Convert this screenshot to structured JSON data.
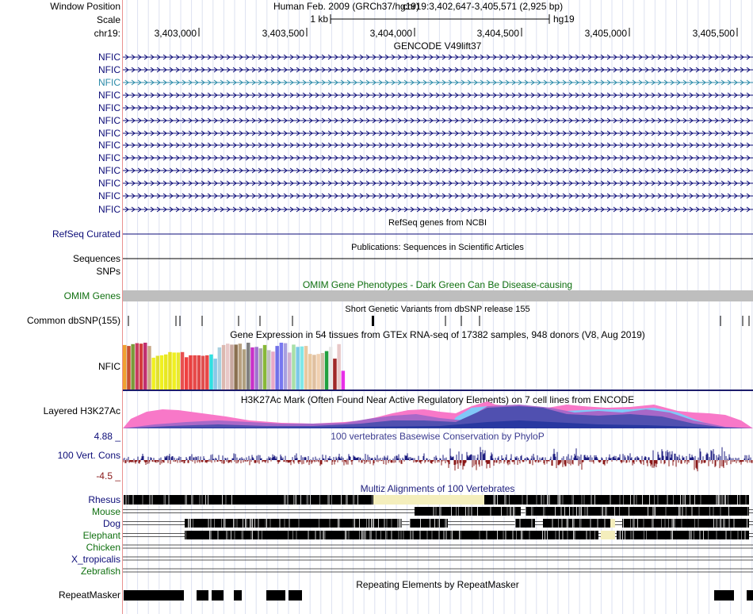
{
  "header": {
    "window_label": "Window Position",
    "scale_label": "Scale",
    "chrom_label": "chr19:",
    "assembly": "Human Feb. 2009 (GRCh37/hg19)",
    "position": "chr19:3,402,647-3,405,571 (2,925 bp)",
    "scale_text": "1 kb",
    "db": "hg19",
    "ticks": [
      "3,403,000",
      "3,403,500",
      "3,404,000",
      "3,404,500",
      "3,405,000",
      "3,405,500"
    ]
  },
  "gencode": {
    "title": "GENCODE V49lift37",
    "rows": [
      {
        "label": "NFIC",
        "color": "#0c0c78"
      },
      {
        "label": "NFIC",
        "color": "#0c0c78"
      },
      {
        "label": "NFIC",
        "color": "#2a8aa8"
      },
      {
        "label": "NFIC",
        "color": "#0c0c78"
      },
      {
        "label": "NFIC",
        "color": "#0c0c78"
      },
      {
        "label": "NFIC",
        "color": "#0c0c78"
      },
      {
        "label": "NFIC",
        "color": "#0c0c78"
      },
      {
        "label": "NFIC",
        "color": "#0c0c78"
      },
      {
        "label": "NFIC",
        "color": "#0c0c78"
      },
      {
        "label": "NFIC",
        "color": "#0c0c78"
      },
      {
        "label": "NFIC",
        "color": "#0c0c78"
      },
      {
        "label": "NFIC",
        "color": "#0c0c78"
      }
    ]
  },
  "refseq": {
    "title": "RefSeq genes from NCBI",
    "label": "RefSeq Curated"
  },
  "publications": {
    "title": "Publications: Sequences in Scientific Articles",
    "label": "Sequences"
  },
  "snps_label": "SNPs",
  "omim": {
    "title": "OMIM Gene Phenotypes - Dark Green Can Be Disease-causing",
    "label": "OMIM Genes"
  },
  "dbsnp": {
    "title": "Short Genetic Variants from dbSNP release 155",
    "label": "Common dbSNP(155)"
  },
  "gtex": {
    "title": "Gene Expression in 54 tissues from GTEx RNA-seq of 17382 samples, 948 donors (V8, Aug 2019)",
    "label": "NFIC",
    "values": [
      0.95,
      0.93,
      0.97,
      0.99,
      0.98,
      1.0,
      0.93,
      0.68,
      0.72,
      0.73,
      0.75,
      0.8,
      0.79,
      0.79,
      0.8,
      0.69,
      0.73,
      0.73,
      0.73,
      0.72,
      0.73,
      0.75,
      0.66,
      0.9,
      0.95,
      0.98,
      0.96,
      0.96,
      0.98,
      0.86,
      1.0,
      0.9,
      0.91,
      0.88,
      0.95,
      0.84,
      0.81,
      0.93,
      1.0,
      0.99,
      0.79,
      0.96,
      0.91,
      0.92,
      0.93,
      0.76,
      0.74,
      0.76,
      0.78,
      0.82,
      0.91,
      0.66,
      0.97,
      0.4
    ],
    "colors": [
      "#f0a030",
      "#c85030",
      "#7a9a3a",
      "#c83a60",
      "#d23c3c",
      "#c03070",
      "#c8a888",
      "#f0f020",
      "#e0e030",
      "#f0f020",
      "#e8e820",
      "#e8e020",
      "#f0f020",
      "#e8e830",
      "#e85050",
      "#f04040",
      "#e84040",
      "#e84848",
      "#e04848",
      "#e05050",
      "#e84848",
      "#30e0e0",
      "#88c8e8",
      "#a8d0e0",
      "#dcb8b0",
      "#e8c8c8",
      "#c8a8a0",
      "#8a7050",
      "#b8a080",
      "#b0a080",
      "#808080",
      "#c830c8",
      "#a070d0",
      "#a8a8a8",
      "#88b838",
      "#c0c0c0",
      "#e8a8c8",
      "#7070e8",
      "#7878f0",
      "#a8a0e0",
      "#d0b0d0",
      "#a8e0a8",
      "#7cc8e8",
      "#80e8e8",
      "#e8c8a0",
      "#e8c8a0",
      "#e0c0a0",
      "#f0d0b0",
      "#d0c0a8",
      "#20a040",
      "#e8e8e8",
      "#a02828",
      "#e8c8c8",
      "#e830e8"
    ]
  },
  "h3k27ac": {
    "title": "H3K27Ac Mark (Often Found Near Active Regulatory Elements) on 7 cell lines from ENCODE",
    "label": "Layered H3K27Ac"
  },
  "phylop": {
    "title": "100 vertebrates Basewise Conservation by PhyloP",
    "label": "100 Vert. Cons",
    "max_label": "4.88 _",
    "min_label": "-4.5 _"
  },
  "multiz": {
    "title": "Multiz Alignments of 100 Vertebrates",
    "species": [
      {
        "label": "Rhesus",
        "color": "#0c0c78"
      },
      {
        "label": "Mouse",
        "color": "#107010"
      },
      {
        "label": "Dog",
        "color": "#0c0c78"
      },
      {
        "label": "Elephant",
        "color": "#107010"
      },
      {
        "label": "Chicken",
        "color": "#107010"
      },
      {
        "label": "X_tropicalis",
        "color": "#0c0c78"
      },
      {
        "label": "Zebrafish",
        "color": "#107010"
      }
    ]
  },
  "repeatmasker": {
    "title": "Repeating Elements by RepeatMasker",
    "label": "RepeatMasker"
  }
}
